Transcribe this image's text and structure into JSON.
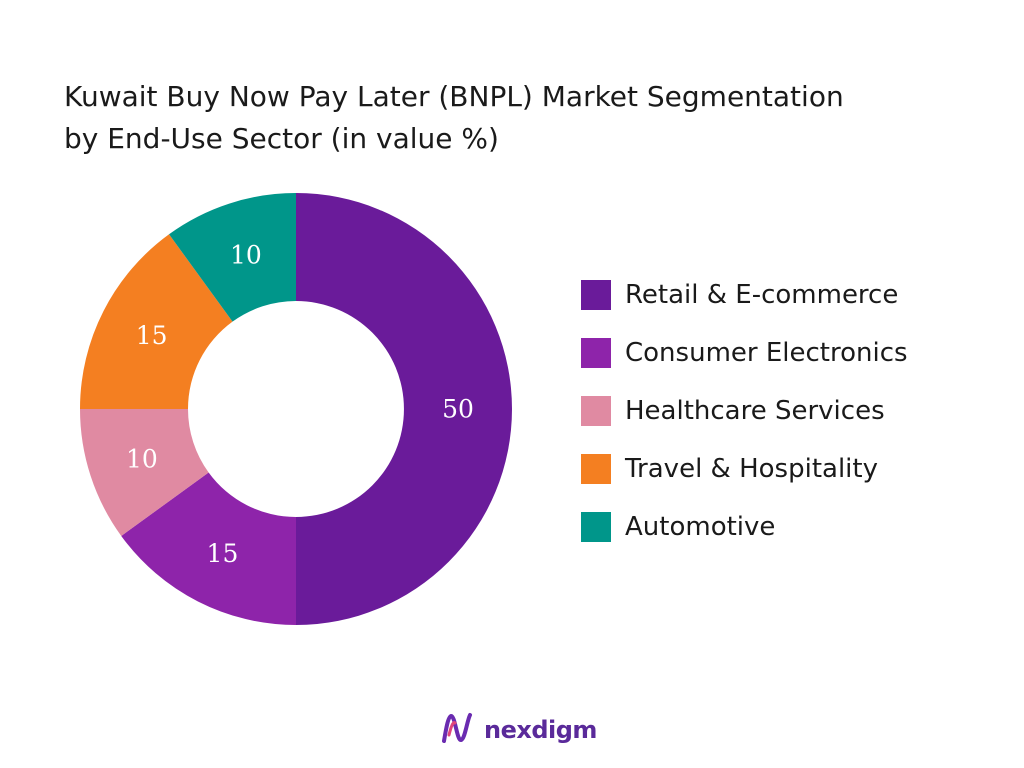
{
  "chart_data": {
    "type": "pie",
    "donut": true,
    "title_line1": "Kuwait Buy Now Pay Later (BNPL) Market Segmentation",
    "title_line2": "by End-Use Sector (in value %)",
    "legend_position": "right",
    "series": [
      {
        "name": "Retail & E-commerce",
        "value": 50,
        "color": "#6a1b9a"
      },
      {
        "name": "Consumer Electronics",
        "value": 15,
        "color": "#8e24aa"
      },
      {
        "name": "Healthcare Services",
        "value": 10,
        "color": "#e08aa2"
      },
      {
        "name": "Travel & Hospitality",
        "value": 15,
        "color": "#f47f21"
      },
      {
        "name": "Automotive",
        "value": 10,
        "color": "#00968a"
      }
    ]
  },
  "brand": {
    "name": "nexdigm",
    "logo_icon": "nexdigm-logo-icon",
    "color": "#5a2a9a"
  }
}
